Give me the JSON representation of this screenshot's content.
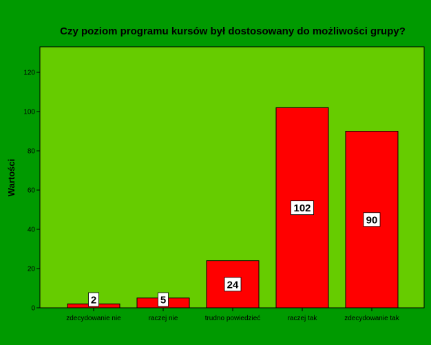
{
  "chart_data": {
    "type": "bar",
    "title": "Czy poziom programu kursów był dostosowany do możliwości grupy?",
    "xlabel": "",
    "ylabel": "Wartości",
    "categories": [
      "zdecydowanie nie",
      "raczej nie",
      "trudno powiedzieć",
      "raczej tak",
      "zdecydowanie tak"
    ],
    "values": [
      2,
      5,
      24,
      102,
      90
    ],
    "data_labels": [
      "2",
      "5",
      "24",
      "102",
      "90"
    ],
    "ylim": [
      0,
      133
    ],
    "yticks": [
      0,
      20,
      40,
      60,
      80,
      100,
      120
    ],
    "ytick_labels": [
      "0",
      "20",
      "40",
      "60",
      "80",
      "100",
      "120"
    ],
    "grid": false,
    "legend": "none",
    "colors": {
      "background": "#009a00",
      "plot_area": "#66cc00",
      "bar": "#ff0000",
      "label_box": "#ffffff",
      "axis": "#000000"
    }
  }
}
